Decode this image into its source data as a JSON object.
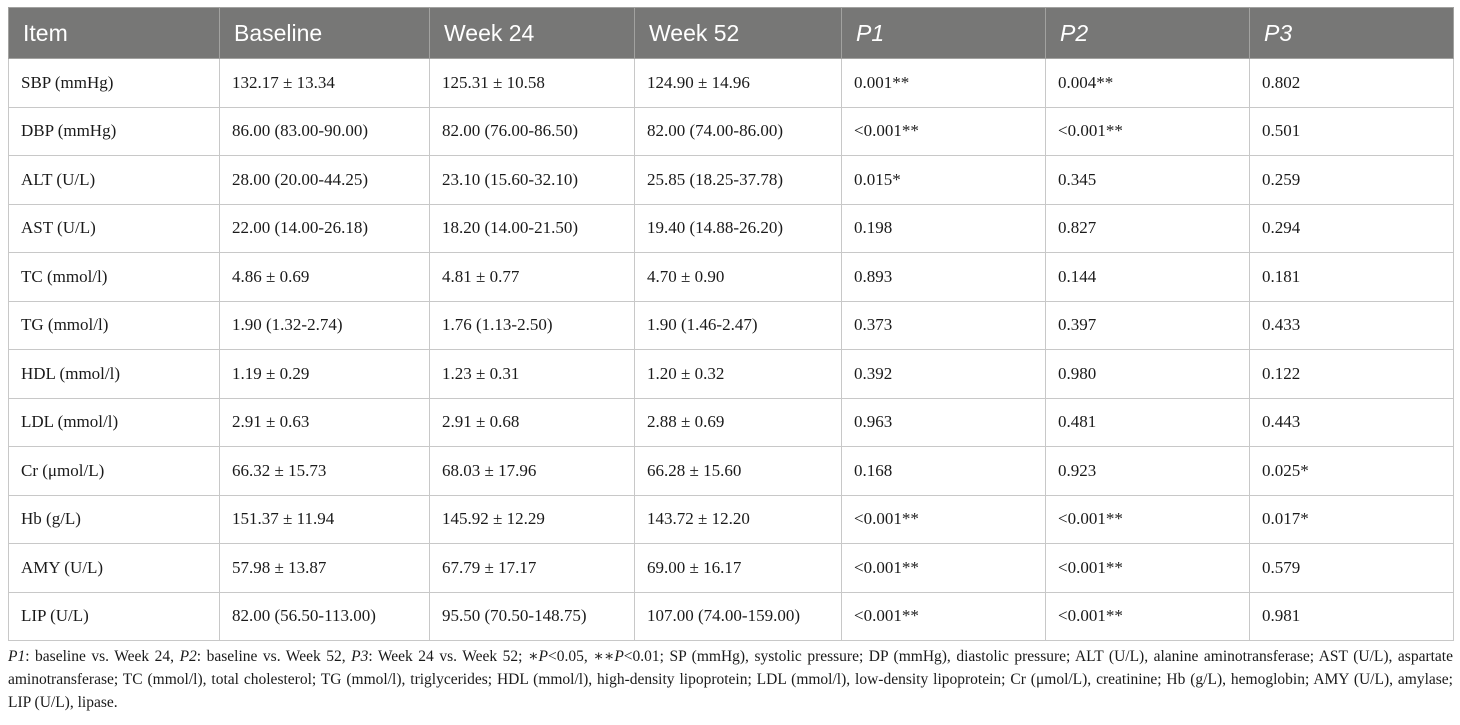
{
  "table": {
    "headers": [
      "Item",
      "Baseline",
      "Week 24",
      "Week 52",
      "P1",
      "P2",
      "P3"
    ],
    "rows": [
      [
        "SBP (mmHg)",
        "132.17 ± 13.34",
        "125.31 ± 10.58",
        "124.90 ± 14.96",
        "0.001**",
        "0.004**",
        "0.802"
      ],
      [
        "DBP (mmHg)",
        "86.00 (83.00-90.00)",
        "82.00 (76.00-86.50)",
        "82.00 (74.00-86.00)",
        "<0.001**",
        "<0.001**",
        "0.501"
      ],
      [
        "ALT (U/L)",
        "28.00 (20.00-44.25)",
        "23.10 (15.60-32.10)",
        "25.85 (18.25-37.78)",
        "0.015*",
        "0.345",
        "0.259"
      ],
      [
        "AST (U/L)",
        "22.00 (14.00-26.18)",
        "18.20 (14.00-21.50)",
        "19.40 (14.88-26.20)",
        "0.198",
        "0.827",
        "0.294"
      ],
      [
        "TC (mmol/l)",
        "4.86 ± 0.69",
        "4.81 ± 0.77",
        "4.70 ± 0.90",
        "0.893",
        "0.144",
        "0.181"
      ],
      [
        "TG (mmol/l)",
        "1.90 (1.32-2.74)",
        "1.76 (1.13-2.50)",
        "1.90 (1.46-2.47)",
        "0.373",
        "0.397",
        "0.433"
      ],
      [
        "HDL (mmol/l)",
        "1.19 ± 0.29",
        "1.23 ± 0.31",
        "1.20 ± 0.32",
        "0.392",
        "0.980",
        "0.122"
      ],
      [
        "LDL (mmol/l)",
        "2.91 ± 0.63",
        "2.91 ± 0.68",
        "2.88 ± 0.69",
        "0.963",
        "0.481",
        "0.443"
      ],
      [
        "Cr (μmol/L)",
        "66.32 ± 15.73",
        "68.03 ± 17.96",
        "66.28 ± 15.60",
        "0.168",
        "0.923",
        "0.025*"
      ],
      [
        "Hb (g/L)",
        "151.37 ± 11.94",
        "145.92 ± 12.29",
        "143.72 ± 12.20",
        "<0.001**",
        "<0.001**",
        "0.017*"
      ],
      [
        "AMY (U/L)",
        "57.98 ± 13.87",
        "67.79 ± 17.17",
        "69.00 ± 16.17",
        "<0.001**",
        "<0.001**",
        "0.579"
      ],
      [
        "LIP (U/L)",
        "82.00 (56.50-113.00)",
        "95.50 (70.50-148.75)",
        "107.00 (74.00-159.00)",
        "<0.001**",
        "<0.001**",
        "0.981"
      ]
    ]
  },
  "footnote": {
    "p1": "P1",
    "p1_text": ": baseline vs. Week 24, ",
    "p2": "P2",
    "p2_text": ": baseline vs. Week 52, ",
    "p3": "P3",
    "p3_text": ": Week 24 vs. Week 52; ",
    "sig1_mark": "∗",
    "sig1_p": "P",
    "sig1_text": "<0.05, ",
    "sig2_mark": "∗∗",
    "sig2_p": "P",
    "sig2_text": "<0.01; SP (mmHg), systolic pressure; DP (mmHg), diastolic pressure; ALT (U/L), alanine aminotransferase; AST (U/L), aspartate aminotransferase; TC (mmol/l), total cholesterol; TG (mmol/l), triglycerides; HDL (mmol/l), high-density lipoprotein; LDL (mmol/l), low-density lipoprotein; Cr (μmol/L), creatinine; Hb (g/L), hemoglobin; AMY (U/L), amylase; LIP (U/L), lipase."
  }
}
